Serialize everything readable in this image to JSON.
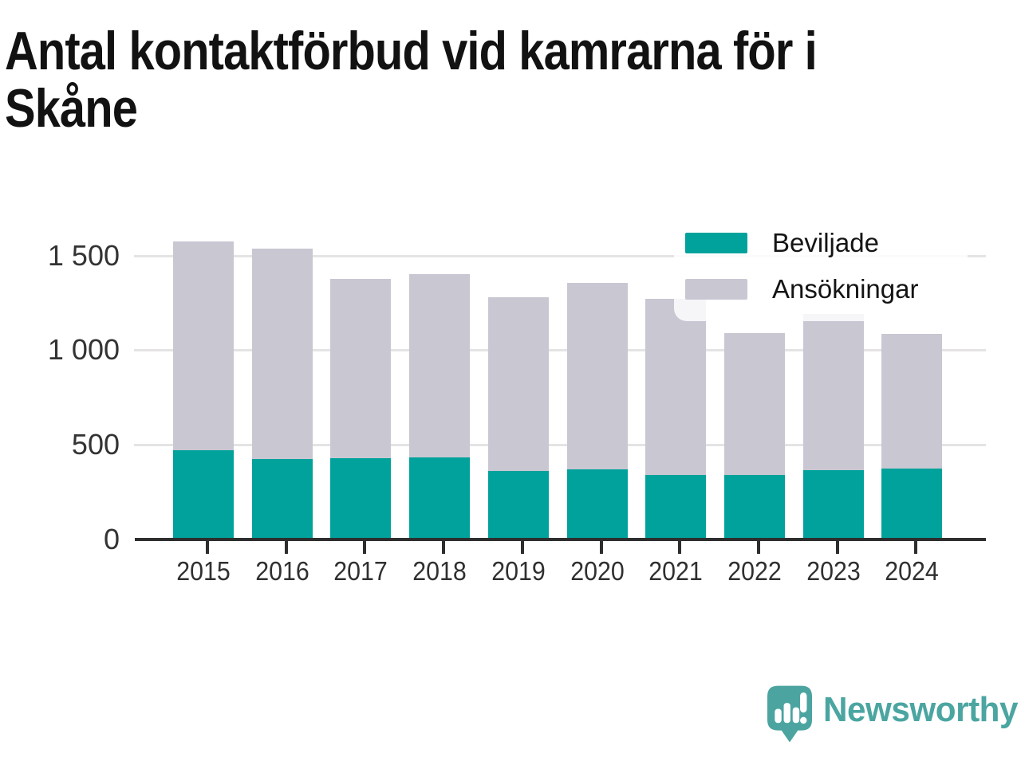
{
  "header": {
    "title_lines": [
      "Antal kontaktförbud vid kamrarna för i",
      "Skåne"
    ]
  },
  "chart_data": {
    "type": "bar",
    "subtype": "overlay-stacked",
    "title": "Antal kontaktförbud vid kamrarna för i Skåne",
    "categories": [
      "2015",
      "2016",
      "2017",
      "2018",
      "2019",
      "2020",
      "2021",
      "2022",
      "2023",
      "2024"
    ],
    "series": [
      {
        "name": "Beviljade",
        "color": "#00a29b",
        "values": [
          470,
          425,
          430,
          435,
          360,
          370,
          340,
          340,
          365,
          375
        ]
      },
      {
        "name": "Ansökningar",
        "color": "#c9c7d2",
        "values": [
          1575,
          1535,
          1375,
          1400,
          1280,
          1355,
          1270,
          1090,
          1190,
          1085
        ]
      }
    ],
    "xlabel": "",
    "ylabel": "",
    "ylim": [
      0,
      1713
    ],
    "yticks": [
      {
        "value": 0,
        "label": "0"
      },
      {
        "value": 500,
        "label": "500"
      },
      {
        "value": 1000,
        "label": "1 000"
      },
      {
        "value": 1500,
        "label": "1 500"
      }
    ],
    "grid": "horizontal",
    "legend_position": "top-right",
    "colors": {
      "axis": "#2e2e2e",
      "gridline": "#e5e3e3",
      "tick_text": "#333333"
    }
  },
  "footer": {
    "brand": "Newsworthy",
    "brand_color": "#4ba5a1"
  }
}
